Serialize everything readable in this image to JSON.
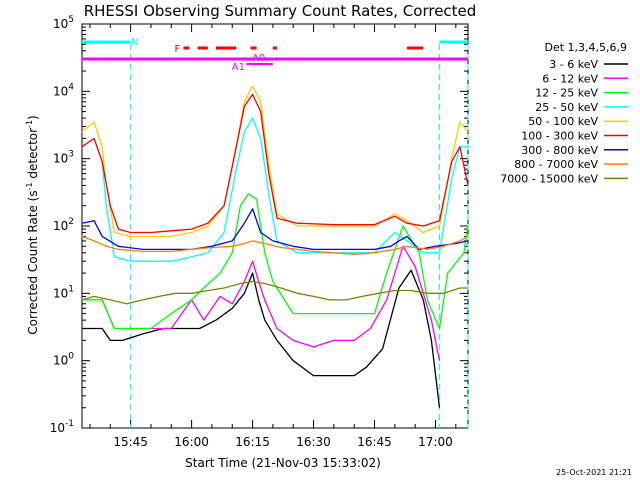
{
  "chart_data": {
    "type": "line",
    "title": "RHESSI Observing Summary Count Rates, Corrected",
    "xlabel": "Start Time (21-Nov-03 15:33:02)",
    "ylabel_main": "Corrected Count Rate (s",
    "ylabel_sup1": "-1",
    "ylabel_mid": " detector",
    "ylabel_sup2": "-1",
    "ylabel_end": ")",
    "y_scale": "log",
    "ylim": [
      0.1,
      100000
    ],
    "xlim_minutes": [
      "15:33:02",
      "17:08:00"
    ],
    "x_ticks": [
      {
        "label": "15:45",
        "min": 45
      },
      {
        "label": "16:00",
        "min": 60
      },
      {
        "label": "16:15",
        "min": 75
      },
      {
        "label": "16:30",
        "min": 90
      },
      {
        "label": "16:45",
        "min": 105
      },
      {
        "label": "17:00",
        "min": 120
      }
    ],
    "y_ticks": [
      {
        "base": "10",
        "exp": "-1",
        "v": 0.1
      },
      {
        "base": "10",
        "exp": "0",
        "v": 1
      },
      {
        "base": "10",
        "exp": "1",
        "v": 10
      },
      {
        "base": "10",
        "exp": "2",
        "v": 100
      },
      {
        "base": "10",
        "exp": "3",
        "v": 1000
      },
      {
        "base": "10",
        "exp": "4",
        "v": 10000
      },
      {
        "base": "10",
        "exp": "5",
        "v": 100000
      }
    ],
    "legend_title": "Det 1,3,4,5,6,9",
    "legend_position": "right",
    "series": [
      {
        "name": "3 - 6 keV",
        "color": "#000000",
        "points": [
          [
            33,
            3
          ],
          [
            38,
            3
          ],
          [
            40,
            2
          ],
          [
            43,
            2
          ],
          [
            48,
            2.5
          ],
          [
            53,
            3
          ],
          [
            58,
            3
          ],
          [
            62,
            3
          ],
          [
            66,
            4
          ],
          [
            70,
            6
          ],
          [
            73,
            10
          ],
          [
            75,
            20
          ],
          [
            76.5,
            8
          ],
          [
            78,
            4
          ],
          [
            81,
            2
          ],
          [
            85,
            1
          ],
          [
            90,
            0.6
          ],
          [
            95,
            0.6
          ],
          [
            100,
            0.6
          ],
          [
            103,
            0.8
          ],
          [
            107,
            1.5
          ],
          [
            111,
            12
          ],
          [
            114,
            22
          ],
          [
            117,
            8
          ],
          [
            119,
            2
          ],
          [
            121,
            0.2
          ]
        ]
      },
      {
        "name": "6 - 12 keV",
        "color": "#ff00ff",
        "points": [
          [
            33,
            8
          ],
          [
            38,
            8
          ],
          [
            41,
            3
          ],
          [
            45,
            3
          ],
          [
            50,
            3
          ],
          [
            55,
            3
          ],
          [
            60,
            8
          ],
          [
            63,
            4
          ],
          [
            67,
            9
          ],
          [
            70,
            7
          ],
          [
            73,
            15
          ],
          [
            75,
            30
          ],
          [
            76.5,
            15
          ],
          [
            78,
            8
          ],
          [
            81,
            3
          ],
          [
            85,
            2
          ],
          [
            90,
            1.6
          ],
          [
            95,
            2
          ],
          [
            100,
            2
          ],
          [
            104,
            3
          ],
          [
            108,
            8
          ],
          [
            112,
            50
          ],
          [
            115,
            25
          ],
          [
            117,
            10
          ],
          [
            119,
            4
          ],
          [
            121,
            1
          ]
        ]
      },
      {
        "name": "12 - 25 keV",
        "color": "#00ff00",
        "points": [
          [
            33,
            8
          ],
          [
            38,
            8
          ],
          [
            41,
            3
          ],
          [
            45,
            3
          ],
          [
            50,
            3
          ],
          [
            55,
            5
          ],
          [
            60,
            8
          ],
          [
            63,
            12
          ],
          [
            67,
            20
          ],
          [
            70,
            40
          ],
          [
            72,
            200
          ],
          [
            74,
            300
          ],
          [
            76,
            250
          ],
          [
            78,
            40
          ],
          [
            80,
            15
          ],
          [
            85,
            5
          ],
          [
            95,
            5
          ],
          [
            105,
            5
          ],
          [
            108,
            20
          ],
          [
            112,
            100
          ],
          [
            116,
            40
          ],
          [
            118,
            8
          ],
          [
            121,
            3
          ],
          [
            123,
            20
          ],
          [
            127,
            40
          ],
          [
            128,
            100
          ]
        ]
      },
      {
        "name": "25 - 50 keV",
        "color": "#00ffff",
        "points": [
          [
            33,
            1500
          ],
          [
            36,
            2000
          ],
          [
            38,
            900
          ],
          [
            39,
            200
          ],
          [
            41,
            35
          ],
          [
            45,
            30
          ],
          [
            50,
            30
          ],
          [
            55,
            30
          ],
          [
            60,
            35
          ],
          [
            64,
            40
          ],
          [
            68,
            80
          ],
          [
            71,
            700
          ],
          [
            73,
            2500
          ],
          [
            75,
            4000
          ],
          [
            77,
            2000
          ],
          [
            79,
            300
          ],
          [
            81,
            60
          ],
          [
            86,
            40
          ],
          [
            95,
            40
          ],
          [
            105,
            40
          ],
          [
            110,
            80
          ],
          [
            113,
            60
          ],
          [
            117,
            40
          ],
          [
            121,
            40
          ],
          [
            124,
            500
          ],
          [
            126,
            1500
          ],
          [
            128,
            1500
          ]
        ]
      },
      {
        "name": "50 - 100 keV",
        "color": "#ffcc00",
        "points": [
          [
            33,
            2500
          ],
          [
            36,
            3500
          ],
          [
            38,
            1500
          ],
          [
            39,
            400
          ],
          [
            41,
            80
          ],
          [
            45,
            70
          ],
          [
            50,
            70
          ],
          [
            55,
            70
          ],
          [
            60,
            80
          ],
          [
            64,
            100
          ],
          [
            68,
            200
          ],
          [
            71,
            1500
          ],
          [
            73,
            7000
          ],
          [
            75,
            12000
          ],
          [
            77,
            7000
          ],
          [
            79,
            800
          ],
          [
            81,
            150
          ],
          [
            86,
            100
          ],
          [
            95,
            100
          ],
          [
            105,
            100
          ],
          [
            110,
            150
          ],
          [
            113,
            120
          ],
          [
            117,
            80
          ],
          [
            121,
            100
          ],
          [
            124,
            1000
          ],
          [
            126,
            3500
          ],
          [
            128,
            2500
          ]
        ]
      },
      {
        "name": "100 - 300 keV",
        "color": "#ff0000",
        "points": [
          [
            33,
            1500
          ],
          [
            36,
            2000
          ],
          [
            38,
            900
          ],
          [
            40,
            200
          ],
          [
            42,
            90
          ],
          [
            45,
            80
          ],
          [
            50,
            80
          ],
          [
            55,
            85
          ],
          [
            60,
            90
          ],
          [
            64,
            110
          ],
          [
            68,
            200
          ],
          [
            71,
            1500
          ],
          [
            73,
            6000
          ],
          [
            75,
            9000
          ],
          [
            77,
            5000
          ],
          [
            79,
            600
          ],
          [
            81,
            130
          ],
          [
            86,
            110
          ],
          [
            95,
            105
          ],
          [
            105,
            105
          ],
          [
            110,
            140
          ],
          [
            113,
            110
          ],
          [
            117,
            100
          ],
          [
            121,
            120
          ],
          [
            124,
            900
          ],
          [
            126,
            1500
          ],
          [
            128,
            400
          ]
        ]
      },
      {
        "name": "300 - 800 keV",
        "color": "#0000ff",
        "points": [
          [
            33,
            110
          ],
          [
            36,
            120
          ],
          [
            38,
            70
          ],
          [
            42,
            50
          ],
          [
            48,
            45
          ],
          [
            55,
            45
          ],
          [
            60,
            45
          ],
          [
            65,
            50
          ],
          [
            70,
            60
          ],
          [
            73,
            110
          ],
          [
            75,
            180
          ],
          [
            77,
            80
          ],
          [
            80,
            60
          ],
          [
            85,
            50
          ],
          [
            90,
            45
          ],
          [
            95,
            45
          ],
          [
            100,
            45
          ],
          [
            105,
            45
          ],
          [
            109,
            50
          ],
          [
            111,
            60
          ],
          [
            113,
            70
          ],
          [
            116,
            45
          ],
          [
            120,
            50
          ],
          [
            125,
            55
          ],
          [
            128,
            60
          ]
        ]
      },
      {
        "name": "800 - 7000 keV",
        "color": "#ff8000",
        "points": [
          [
            33,
            70
          ],
          [
            36,
            60
          ],
          [
            39,
            50
          ],
          [
            42,
            45
          ],
          [
            48,
            42
          ],
          [
            55,
            42
          ],
          [
            60,
            45
          ],
          [
            65,
            48
          ],
          [
            70,
            50
          ],
          [
            73,
            55
          ],
          [
            75,
            60
          ],
          [
            78,
            55
          ],
          [
            82,
            48
          ],
          [
            90,
            42
          ],
          [
            95,
            40
          ],
          [
            100,
            38
          ],
          [
            105,
            40
          ],
          [
            110,
            45
          ],
          [
            113,
            50
          ],
          [
            118,
            45
          ],
          [
            122,
            50
          ],
          [
            126,
            60
          ],
          [
            128,
            70
          ]
        ]
      },
      {
        "name": "7000 - 15000 keV",
        "color": "#808000",
        "points": [
          [
            33,
            8
          ],
          [
            36,
            9
          ],
          [
            40,
            8
          ],
          [
            44,
            7
          ],
          [
            48,
            8
          ],
          [
            52,
            9
          ],
          [
            56,
            10
          ],
          [
            60,
            10
          ],
          [
            64,
            11
          ],
          [
            68,
            12
          ],
          [
            72,
            14
          ],
          [
            75,
            15
          ],
          [
            78,
            14
          ],
          [
            82,
            12
          ],
          [
            86,
            10
          ],
          [
            90,
            9
          ],
          [
            94,
            8
          ],
          [
            98,
            8
          ],
          [
            102,
            9
          ],
          [
            106,
            10
          ],
          [
            110,
            11
          ],
          [
            114,
            11
          ],
          [
            118,
            10
          ],
          [
            122,
            10
          ],
          [
            126,
            12
          ],
          [
            128,
            12
          ]
        ]
      }
    ],
    "annotations": {
      "attenuator_labels": [
        {
          "text": "N",
          "color": "#00ffff"
        },
        {
          "text": "F",
          "color": "#ff0000"
        },
        {
          "text": "A1",
          "color": "#ff00ff"
        },
        {
          "text": "A0",
          "color": "#ff00ff"
        }
      ],
      "night_bars": [
        {
          "start_min": 33,
          "end_min": 45
        },
        {
          "start_min": 121,
          "end_min": 128
        }
      ],
      "flare_bars": [
        [
          58,
          59.5
        ],
        [
          61.5,
          64
        ],
        [
          66,
          71
        ],
        [
          74.5,
          76
        ],
        [
          80,
          81
        ],
        [
          113,
          117
        ]
      ],
      "attenuator_bar": [
        33,
        128
      ],
      "a0_bar": [
        73.5,
        80
      ],
      "night_lines_min": [
        45,
        121,
        128
      ]
    }
  },
  "footer": {
    "timestamp": "25-Oct-2021 21:21"
  }
}
